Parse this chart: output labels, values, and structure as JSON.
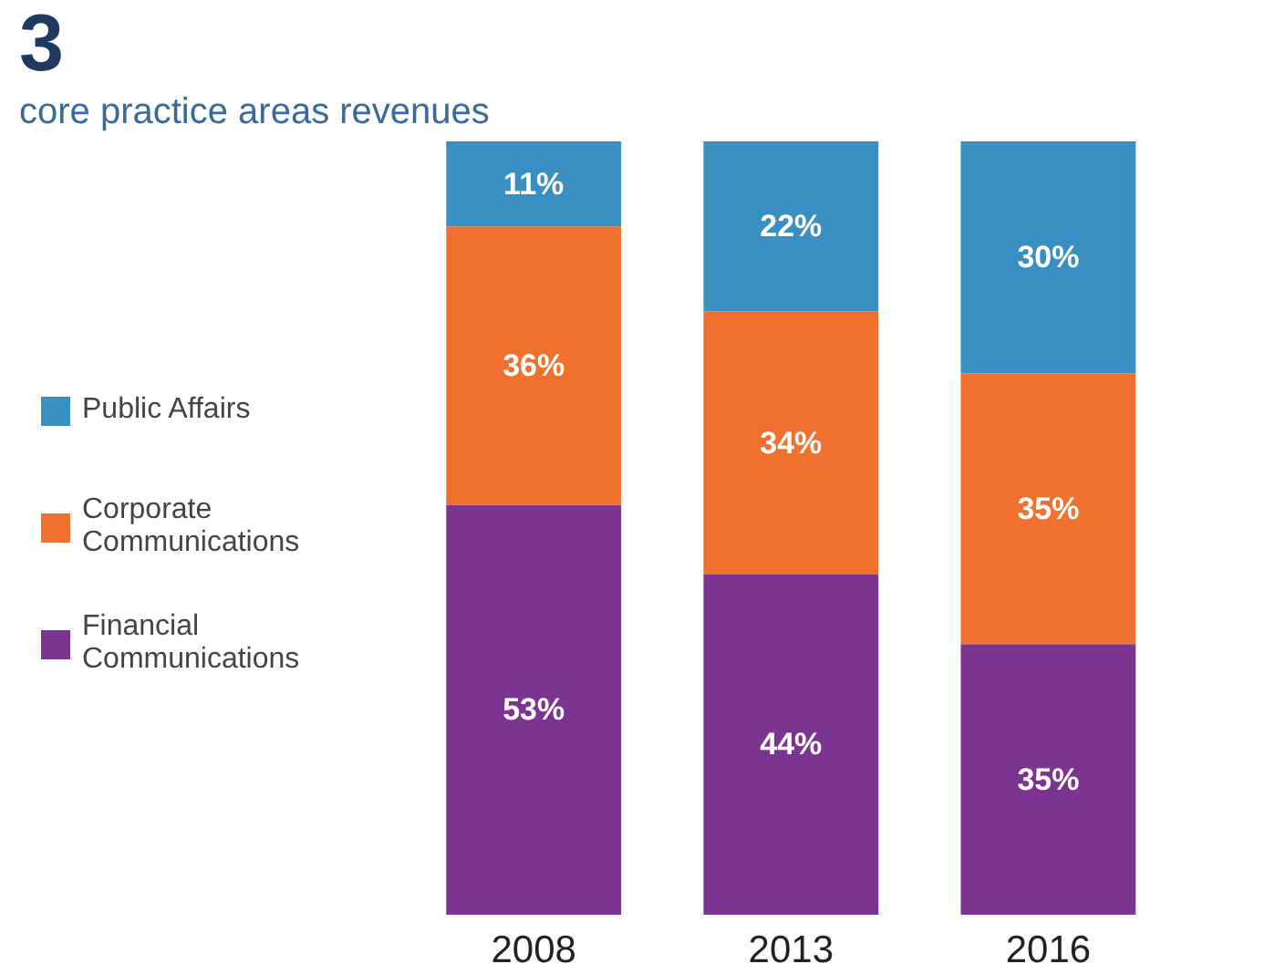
{
  "chart_data": {
    "type": "bar",
    "title": "3",
    "subtitle": "core practice areas revenues",
    "categories": [
      "2008",
      "2013",
      "2016"
    ],
    "stacked": true,
    "tick_labels": "x",
    "legend": "left",
    "grid": false,
    "series": [
      {
        "name": "Financial Communications",
        "color": "#7b3590",
        "values": [
          53,
          44,
          35
        ],
        "value_labels": [
          "53%",
          "44%",
          "35%"
        ]
      },
      {
        "name": "Corporate Communications",
        "color": "#f07030",
        "values": [
          36,
          34,
          35
        ],
        "value_labels": [
          "36%",
          "34%",
          "35%"
        ]
      },
      {
        "name": "Public Affairs",
        "color": "#3a8fc2",
        "values": [
          11,
          22,
          30
        ],
        "value_labels": [
          "11%",
          "22%",
          "30%"
        ]
      }
    ]
  }
}
